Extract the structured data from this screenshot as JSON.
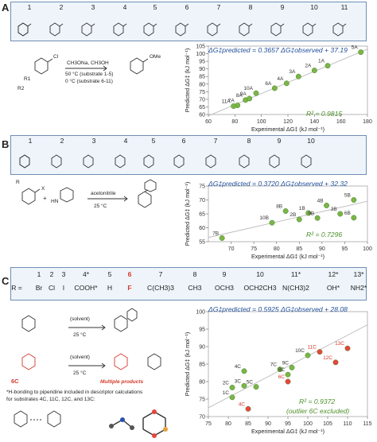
{
  "panels": [
    {
      "letter": "A",
      "numbers": [
        "1",
        "2",
        "3",
        "4",
        "5",
        "6",
        "7",
        "8",
        "9",
        "10",
        "11"
      ],
      "reaction": {
        "reagents": "CH3ONa, CH3OH",
        "cond1": "50 °C (substrate 1-5)",
        "cond2": "0 °C (substrate 6-11)",
        "r1": "R1",
        "r2": "R2",
        "sub_x": "Cl",
        "product_group": "OMe"
      },
      "equation": "ΔG‡predicted = 0.3657 ΔG‡observed + 37.19",
      "r2_text": "R² = 0.9815"
    },
    {
      "letter": "B",
      "numbers": [
        "1",
        "2",
        "3",
        "4",
        "5",
        "6",
        "7",
        "8",
        "9",
        "10"
      ],
      "reaction": {
        "solvent": "acetonitrile",
        "temp": "25 °C",
        "r": "R",
        "x": "X",
        "amine": "HN"
      },
      "equation": "ΔG‡predicted = 0.3720 ΔG‡observed + 32.32",
      "r2_text": "R² = 0.7296"
    },
    {
      "letter": "C",
      "numbers": [
        "1",
        "2",
        "3",
        "4*",
        "5",
        "6",
        "7",
        "8",
        "9",
        "10",
        "11*",
        "12*",
        "13*"
      ],
      "r_prefix": "R  =",
      "r_groups": [
        "Br",
        "Cl",
        "I",
        "COOH*",
        "H",
        "F",
        "C(CH3)3",
        "CH3",
        "OCH3",
        "OCH2CH3",
        "N(CH3)2",
        "OH*",
        "NH2*"
      ],
      "reaction": {
        "solvent": "(solvent)",
        "temp": "25 °C",
        "label_6c": "6C",
        "multiple": "Multiple products",
        "note1": "*H-bonding to piperidine included in descriptor calculations",
        "note2": "for substrates 4C, 11C, 12C, and 13C:"
      },
      "equation": "ΔG‡predicted = 0.5925 ΔG‡observed + 28.08",
      "r2_text": "R² = 0.9372",
      "r2_note": "(outlier 6C excluded)"
    }
  ],
  "chart_data": [
    {
      "type": "scatter",
      "xlabel": "Experimental ΔG‡ (kJ mol⁻¹)",
      "ylabel": "Predicted ΔG‡ (kJ mol⁻¹)",
      "xlim": [
        60,
        180
      ],
      "ylim": [
        60,
        105
      ],
      "xticks": [
        60,
        80,
        100,
        120,
        140,
        160,
        180
      ],
      "yticks": [
        60,
        65,
        70,
        75,
        80,
        85,
        90,
        95,
        100,
        105
      ],
      "points": [
        {
          "label": "1A",
          "x": 150,
          "y": 92.1
        },
        {
          "label": "2A",
          "x": 140,
          "y": 89.0
        },
        {
          "label": "3A",
          "x": 128,
          "y": 85.0
        },
        {
          "label": "4A",
          "x": 119,
          "y": 80.5
        },
        {
          "label": "5A",
          "x": 175,
          "y": 101.0
        },
        {
          "label": "6A",
          "x": 110,
          "y": 77.3
        },
        {
          "label": "7A",
          "x": 82,
          "y": 66.0
        },
        {
          "label": "8A",
          "x": 88,
          "y": 69.5
        },
        {
          "label": "9A",
          "x": 91,
          "y": 70.5
        },
        {
          "label": "10A",
          "x": 96,
          "y": 74.0
        },
        {
          "label": "11A",
          "x": 79,
          "y": 65.5
        }
      ],
      "fit": {
        "slope": 0.3657,
        "intercept": 37.19
      },
      "color": "#7ab648"
    },
    {
      "type": "scatter",
      "xlabel": "Experimental ΔG‡ (kJ mol⁻¹)",
      "ylabel": "Predicted ΔG‡ (kJ mol⁻¹)",
      "xlim": [
        65,
        100
      ],
      "ylim": [
        55,
        75
      ],
      "xticks": [
        70,
        75,
        80,
        85,
        90,
        95,
        100
      ],
      "yticks": [
        55,
        60,
        65,
        70,
        75
      ],
      "points": [
        {
          "label": "1B",
          "x": 87,
          "y": 65.3
        },
        {
          "label": "2B",
          "x": 85,
          "y": 63.0
        },
        {
          "label": "3B",
          "x": 94,
          "y": 65.0
        },
        {
          "label": "4B",
          "x": 91,
          "y": 68.0
        },
        {
          "label": "5B",
          "x": 97,
          "y": 70.0
        },
        {
          "label": "6B",
          "x": 97,
          "y": 63.6
        },
        {
          "label": "7B",
          "x": 68,
          "y": 56.3
        },
        {
          "label": "8B",
          "x": 82,
          "y": 66.0
        },
        {
          "label": "9B",
          "x": 89,
          "y": 63.5
        },
        {
          "label": "10B",
          "x": 79,
          "y": 61.8
        }
      ],
      "fit": {
        "slope": 0.372,
        "intercept": 32.32
      },
      "color": "#7ab648"
    },
    {
      "type": "scatter",
      "xlabel": "Experimental ΔG‡ (kJ mol⁻¹)",
      "ylabel": "Predicted ΔG‡ (kJ mol⁻¹)",
      "xlim": [
        75,
        115
      ],
      "ylim": [
        70,
        100
      ],
      "xticks": [
        75,
        80,
        85,
        90,
        95,
        100,
        105,
        110,
        115
      ],
      "yticks": [
        70,
        75,
        80,
        85,
        90,
        95,
        100
      ],
      "points": [
        {
          "label": "1C",
          "x": 81,
          "y": 75.5,
          "color": "#7ab648"
        },
        {
          "label": "2C",
          "x": 81,
          "y": 78.3,
          "color": "#7ab648"
        },
        {
          "label": "3C",
          "x": 84,
          "y": 78.8,
          "color": "#7ab648"
        },
        {
          "label": "4C",
          "x": 84,
          "y": 83.0,
          "color": "#7ab648"
        },
        {
          "label": "5C",
          "x": 87,
          "y": 78.5,
          "color": "#7ab648"
        },
        {
          "label": "6C",
          "x": 95,
          "y": 80.0,
          "color": "#e8453c"
        },
        {
          "label": "7C",
          "x": 93,
          "y": 83.5,
          "color": "#7ab648"
        },
        {
          "label": "8C",
          "x": 95,
          "y": 82.0,
          "color": "#7ab648"
        },
        {
          "label": "9C",
          "x": 96,
          "y": 84.0,
          "color": "#7ab648"
        },
        {
          "label": "10C",
          "x": 100,
          "y": 87.5,
          "color": "#7ab648"
        },
        {
          "label": "11C",
          "x": 103,
          "y": 88.5,
          "color": "#e8453c"
        },
        {
          "label": "12C",
          "x": 107,
          "y": 85.5,
          "color": "#e8453c"
        },
        {
          "label": "13C",
          "x": 110,
          "y": 89.5,
          "color": "#e8453c"
        },
        {
          "label": "4C",
          "x": 85,
          "y": 72.2,
          "color": "#e8453c"
        }
      ],
      "fit": {
        "slope": 0.5925,
        "intercept": 28.08
      },
      "color": "#7ab648"
    }
  ]
}
